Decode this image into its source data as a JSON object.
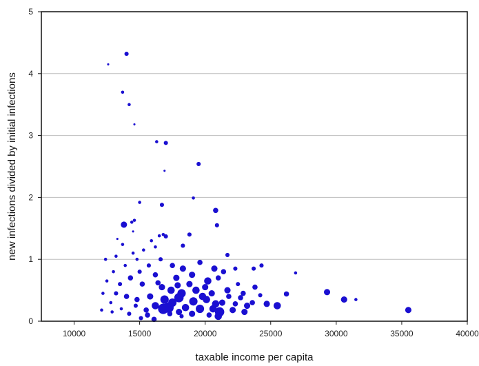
{
  "chart_data": {
    "type": "scatter",
    "title": "",
    "xlabel": "taxable income per capita",
    "ylabel": "new infections divided by initial infections",
    "xlim": [
      7500,
      40000
    ],
    "ylim": [
      0,
      5
    ],
    "xticks": [
      10000,
      15000,
      20000,
      25000,
      30000,
      35000,
      40000
    ],
    "yticks": [
      0,
      1,
      2,
      3,
      4,
      5
    ],
    "grid": "horizontal",
    "marker_color": "#1a0fd1",
    "points": [
      [
        14000,
        4.32,
        3
      ],
      [
        12600,
        4.15,
        1
      ],
      [
        13700,
        3.7,
        2
      ],
      [
        14200,
        3.5,
        2
      ],
      [
        14600,
        3.18,
        1
      ],
      [
        16300,
        2.9,
        2
      ],
      [
        17000,
        2.88,
        3
      ],
      [
        19500,
        2.54,
        3
      ],
      [
        16900,
        2.43,
        1
      ],
      [
        19100,
        1.99,
        2
      ],
      [
        15000,
        1.92,
        2
      ],
      [
        16700,
        1.88,
        3
      ],
      [
        20800,
        1.79,
        4
      ],
      [
        20900,
        1.55,
        3
      ],
      [
        13800,
        1.56,
        5
      ],
      [
        14400,
        1.6,
        2
      ],
      [
        14600,
        1.63,
        2
      ],
      [
        16800,
        1.4,
        2
      ],
      [
        16500,
        1.38,
        2
      ],
      [
        17000,
        1.37,
        3
      ],
      [
        18800,
        1.4,
        3
      ],
      [
        15900,
        1.3,
        2
      ],
      [
        13300,
        1.33,
        1
      ],
      [
        14500,
        1.45,
        1
      ],
      [
        13700,
        1.24,
        2
      ],
      [
        16200,
        1.2,
        2
      ],
      [
        15300,
        1.15,
        2
      ],
      [
        18300,
        1.22,
        3
      ],
      [
        21700,
        1.07,
        3
      ],
      [
        12400,
        1.0,
        2
      ],
      [
        13200,
        1.05,
        2
      ],
      [
        14800,
        1.0,
        2
      ],
      [
        16600,
        1.0,
        3
      ],
      [
        17500,
        0.9,
        4
      ],
      [
        18300,
        0.85,
        5
      ],
      [
        19600,
        0.95,
        4
      ],
      [
        20700,
        0.85,
        5
      ],
      [
        21400,
        0.8,
        4
      ],
      [
        22300,
        0.85,
        3
      ],
      [
        23700,
        0.85,
        3
      ],
      [
        24300,
        0.9,
        3
      ],
      [
        26900,
        0.78,
        2
      ],
      [
        16200,
        0.75,
        4
      ],
      [
        17800,
        0.7,
        5
      ],
      [
        19000,
        0.75,
        5
      ],
      [
        20200,
        0.65,
        6
      ],
      [
        21000,
        0.7,
        4
      ],
      [
        22500,
        0.6,
        3
      ],
      [
        23800,
        0.55,
        4
      ],
      [
        15200,
        0.6,
        4
      ],
      [
        16700,
        0.55,
        5
      ],
      [
        17400,
        0.5,
        6
      ],
      [
        18200,
        0.45,
        7
      ],
      [
        19300,
        0.5,
        6
      ],
      [
        20500,
        0.45,
        5
      ],
      [
        21800,
        0.4,
        4
      ],
      [
        22900,
        0.45,
        4
      ],
      [
        24200,
        0.42,
        3
      ],
      [
        15800,
        0.4,
        5
      ],
      [
        16900,
        0.35,
        7
      ],
      [
        18000,
        0.38,
        8
      ],
      [
        19100,
        0.32,
        7
      ],
      [
        20100,
        0.35,
        6
      ],
      [
        21300,
        0.3,
        5
      ],
      [
        22300,
        0.28,
        4
      ],
      [
        23600,
        0.3,
        4
      ],
      [
        16200,
        0.25,
        6
      ],
      [
        17200,
        0.22,
        9
      ],
      [
        18500,
        0.22,
        6
      ],
      [
        19600,
        0.2,
        7
      ],
      [
        20600,
        0.2,
        6
      ],
      [
        21100,
        0.15,
        8
      ],
      [
        22100,
        0.18,
        5
      ],
      [
        23000,
        0.15,
        5
      ],
      [
        15500,
        0.18,
        4
      ],
      [
        16800,
        0.2,
        9
      ],
      [
        18000,
        0.15,
        5
      ],
      [
        19000,
        0.12,
        5
      ],
      [
        20300,
        0.1,
        4
      ],
      [
        21000,
        0.08,
        6
      ],
      [
        15100,
        0.05,
        3
      ],
      [
        16100,
        0.03,
        4
      ],
      [
        14200,
        0.12,
        3
      ],
      [
        13600,
        0.2,
        2
      ],
      [
        12800,
        0.3,
        2
      ],
      [
        12200,
        0.45,
        2
      ],
      [
        13200,
        0.45,
        3
      ],
      [
        14000,
        0.4,
        4
      ],
      [
        14800,
        0.35,
        4
      ],
      [
        13500,
        0.6,
        3
      ],
      [
        14300,
        0.7,
        4
      ],
      [
        15000,
        0.8,
        3
      ],
      [
        15700,
        0.9,
        3
      ],
      [
        12900,
        0.15,
        2
      ],
      [
        14700,
        0.25,
        3
      ],
      [
        15600,
        0.1,
        4
      ],
      [
        17500,
        0.3,
        7
      ],
      [
        18800,
        0.6,
        5
      ],
      [
        20000,
        0.55,
        5
      ],
      [
        21700,
        0.5,
        5
      ],
      [
        22700,
        0.38,
        4
      ],
      [
        23200,
        0.25,
        5
      ],
      [
        24700,
        0.28,
        5
      ],
      [
        25500,
        0.25,
        6
      ],
      [
        26200,
        0.44,
        4
      ],
      [
        29300,
        0.47,
        5
      ],
      [
        30600,
        0.35,
        5
      ],
      [
        31500,
        0.35,
        2
      ],
      [
        35500,
        0.18,
        5
      ],
      [
        12100,
        0.18,
        2
      ],
      [
        12500,
        0.65,
        2
      ],
      [
        13900,
        0.9,
        2
      ],
      [
        17300,
        0.12,
        4
      ],
      [
        18200,
        0.08,
        3
      ],
      [
        19800,
        0.4,
        6
      ],
      [
        20800,
        0.28,
        6
      ],
      [
        17900,
        0.58,
        5
      ],
      [
        16400,
        0.62,
        4
      ],
      [
        13000,
        0.8,
        2
      ],
      [
        14500,
        1.1,
        2
      ]
    ]
  }
}
